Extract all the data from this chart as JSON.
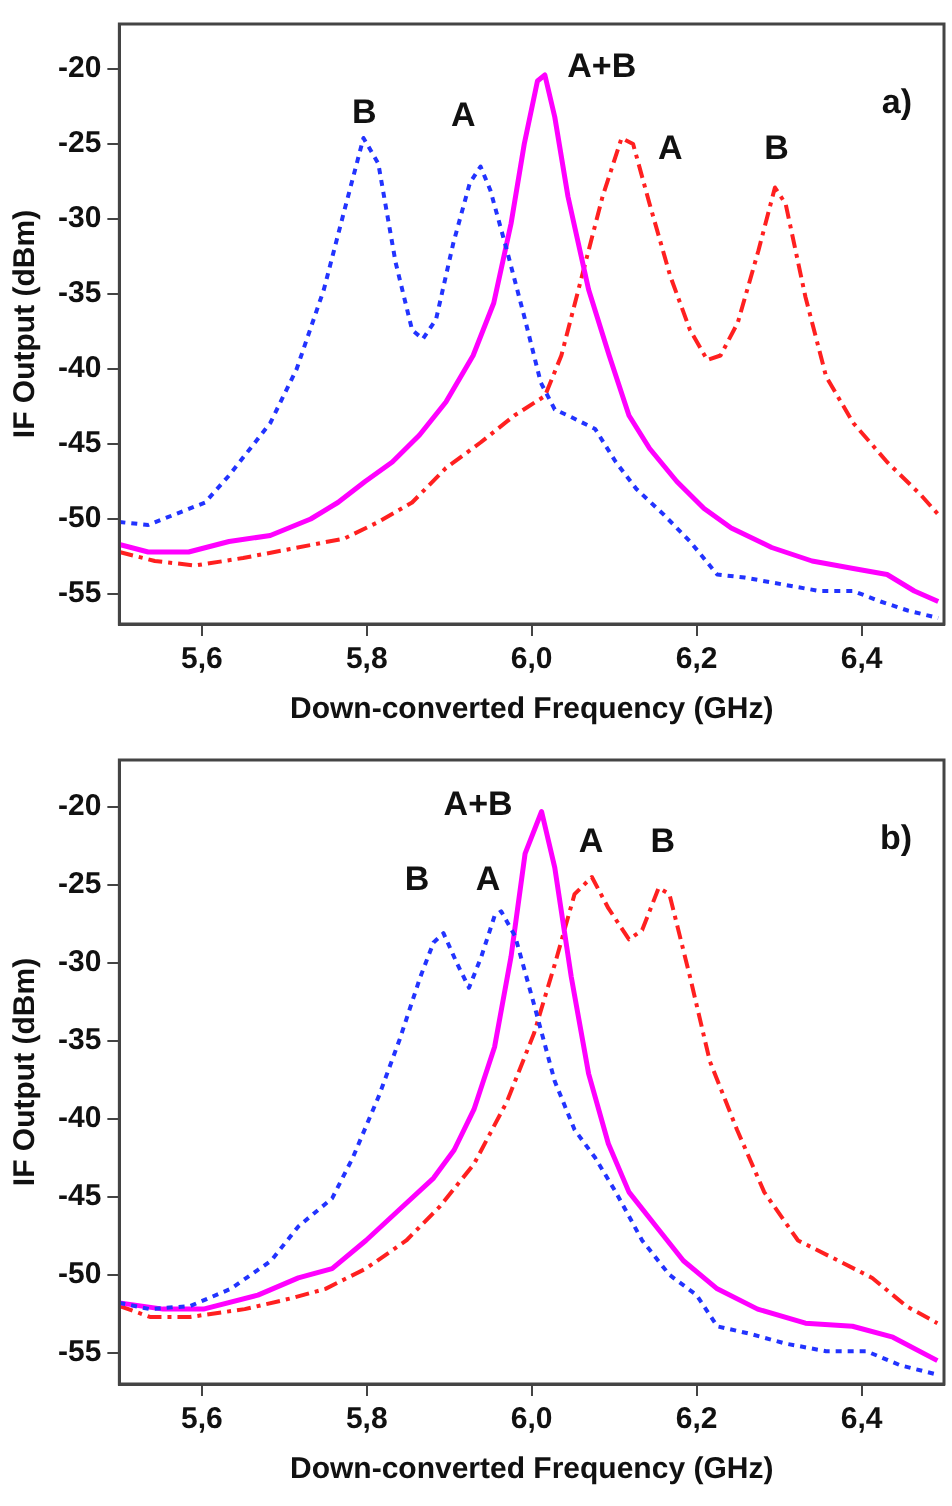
{
  "chart_data": [
    {
      "type": "line",
      "xlabel": "Down-converted Frequency (GHz)",
      "ylabel": "IF Output (dBm)",
      "xlim": [
        5.5,
        6.5
      ],
      "ylim": [
        -57,
        -17
      ],
      "xticks": [
        {
          "value": 5.6,
          "label": "5,6"
        },
        {
          "value": 5.8,
          "label": "5,8"
        },
        {
          "value": 6.0,
          "label": "6,0"
        },
        {
          "value": 6.2,
          "label": "6,2"
        },
        {
          "value": 6.4,
          "label": "6,4"
        }
      ],
      "yticks": [
        -20,
        -25,
        -30,
        -35,
        -40,
        -45,
        -50,
        -55
      ],
      "grid": false,
      "legend": false,
      "marker": "none",
      "annotations": [
        "B",
        "A",
        "A+B",
        "A",
        "B",
        "a)"
      ],
      "series": [
        {
          "color": "#2233ff",
          "line_style": "dotted",
          "x": [
            5.5,
            5.535,
            5.567,
            5.604,
            5.633,
            5.683,
            5.715,
            5.748,
            5.773,
            5.796,
            5.814,
            5.835,
            5.855,
            5.868,
            5.884,
            5.905,
            5.925,
            5.938,
            5.95,
            5.97,
            5.991,
            6.011,
            6.028,
            6.044,
            6.077,
            6.102,
            6.127,
            6.16,
            6.192,
            6.225,
            6.258,
            6.308,
            6.349,
            6.39,
            6.423,
            6.456,
            6.493
          ],
          "values": [
            -50.2,
            -50.4,
            -49.7,
            -48.9,
            -47.1,
            -43.6,
            -40,
            -34.7,
            -29.4,
            -24.6,
            -26.3,
            -32.9,
            -37.4,
            -38,
            -36.7,
            -31.6,
            -27.6,
            -26.5,
            -28.1,
            -32.1,
            -36.5,
            -40.9,
            -42.7,
            -43.1,
            -44,
            -46.2,
            -48,
            -49.7,
            -51.5,
            -53.7,
            -53.9,
            -54.4,
            -54.8,
            -54.8,
            -55.5,
            -56.1,
            -56.6
          ]
        },
        {
          "color": "#ff00ff",
          "line_style": "solid",
          "x": [
            5.5,
            5.535,
            5.584,
            5.633,
            5.683,
            5.732,
            5.765,
            5.798,
            5.831,
            5.864,
            5.896,
            5.929,
            5.954,
            5.975,
            5.991,
            6.007,
            6.016,
            6.028,
            6.044,
            6.069,
            6.094,
            6.118,
            6.143,
            6.176,
            6.209,
            6.242,
            6.291,
            6.34,
            6.39,
            6.431,
            6.464,
            6.493
          ],
          "values": [
            -51.7,
            -52.2,
            -52.2,
            -51.5,
            -51.1,
            -50,
            -48.9,
            -47.5,
            -46.2,
            -44.4,
            -42.2,
            -39.1,
            -35.6,
            -30.3,
            -25,
            -20.8,
            -20.4,
            -23.2,
            -28.5,
            -34.7,
            -39.1,
            -43.1,
            -45.3,
            -47.5,
            -49.3,
            -50.6,
            -51.9,
            -52.8,
            -53.3,
            -53.7,
            -54.8,
            -55.5
          ]
        },
        {
          "color": "#ff2020",
          "line_style": "dashed",
          "x": [
            5.5,
            5.543,
            5.592,
            5.65,
            5.707,
            5.773,
            5.814,
            5.855,
            5.896,
            5.938,
            5.979,
            6.016,
            6.036,
            6.061,
            6.086,
            6.109,
            6.123,
            6.143,
            6.168,
            6.192,
            6.213,
            6.229,
            6.25,
            6.275,
            6.295,
            6.308,
            6.332,
            6.357,
            6.39,
            6.431,
            6.472,
            6.493
          ],
          "values": [
            -52.2,
            -52.8,
            -53.1,
            -52.6,
            -52,
            -51.3,
            -50.2,
            -48.9,
            -46.6,
            -44.9,
            -43.1,
            -41.8,
            -39.1,
            -33.8,
            -28.5,
            -24.6,
            -25,
            -29,
            -33.8,
            -37.4,
            -39.4,
            -39.1,
            -36.9,
            -32.1,
            -27.9,
            -29,
            -35.2,
            -40.5,
            -43.6,
            -46.2,
            -48.4,
            -49.7
          ]
        }
      ]
    },
    {
      "type": "line",
      "xlabel": "Down-converted Frequency (GHz)",
      "ylabel": "IF Output (dBm)",
      "xlim": [
        5.5,
        6.5
      ],
      "ylim": [
        -57,
        -17
      ],
      "xticks": [
        {
          "value": 5.6,
          "label": "5,6"
        },
        {
          "value": 5.8,
          "label": "5,8"
        },
        {
          "value": 6.0,
          "label": "6,0"
        },
        {
          "value": 6.2,
          "label": "6,2"
        },
        {
          "value": 6.4,
          "label": "6,4"
        }
      ],
      "yticks": [
        -20,
        -25,
        -30,
        -35,
        -40,
        -45,
        -50,
        -55
      ],
      "grid": false,
      "legend": false,
      "marker": "none",
      "annotations": [
        "B",
        "A",
        "A+B",
        "A",
        "B",
        "b)"
      ],
      "series": [
        {
          "color": "#2233ff",
          "line_style": "dotted",
          "x": [
            5.5,
            5.537,
            5.586,
            5.635,
            5.684,
            5.717,
            5.758,
            5.783,
            5.815,
            5.84,
            5.865,
            5.881,
            5.893,
            5.91,
            5.924,
            5.939,
            5.955,
            5.963,
            5.98,
            6.003,
            6.028,
            6.052,
            6.077,
            6.102,
            6.134,
            6.167,
            6.2,
            6.225,
            6.266,
            6.307,
            6.357,
            6.406,
            6.447,
            6.492
          ],
          "values": [
            -51.8,
            -52.2,
            -52,
            -50.9,
            -49.1,
            -46.9,
            -45.1,
            -42.5,
            -38.5,
            -34.9,
            -30.9,
            -28.7,
            -28.1,
            -30.1,
            -31.6,
            -29.6,
            -27,
            -26.7,
            -28.3,
            -32.7,
            -37.6,
            -40.7,
            -42.5,
            -44.7,
            -47.8,
            -50,
            -51.3,
            -53.3,
            -53.8,
            -54.4,
            -54.9,
            -54.9,
            -55.8,
            -56.4
          ]
        },
        {
          "color": "#ff00ff",
          "line_style": "solid",
          "x": [
            5.5,
            5.553,
            5.602,
            5.668,
            5.717,
            5.758,
            5.799,
            5.84,
            5.881,
            5.906,
            5.93,
            5.955,
            5.975,
            5.992,
            6.012,
            6.028,
            6.048,
            6.069,
            6.093,
            6.118,
            6.151,
            6.184,
            6.225,
            6.274,
            6.332,
            6.389,
            6.438,
            6.492
          ],
          "values": [
            -51.8,
            -52.2,
            -52.2,
            -51.3,
            -50.2,
            -49.6,
            -47.8,
            -45.8,
            -43.8,
            -42,
            -39.4,
            -35.4,
            -29.6,
            -23,
            -20.3,
            -23.9,
            -30.9,
            -37.1,
            -41.6,
            -44.7,
            -46.9,
            -49.1,
            -50.9,
            -52.2,
            -53.1,
            -53.3,
            -54,
            -55.5
          ]
        },
        {
          "color": "#ff2020",
          "line_style": "dashed",
          "x": [
            5.5,
            5.537,
            5.586,
            5.652,
            5.709,
            5.75,
            5.799,
            5.848,
            5.889,
            5.93,
            5.97,
            6.003,
            6.028,
            6.052,
            6.073,
            6.093,
            6.118,
            6.134,
            6.154,
            6.167,
            6.192,
            6.216,
            6.249,
            6.282,
            6.323,
            6.372,
            6.413,
            6.454,
            6.492
          ],
          "values": [
            -52,
            -52.7,
            -52.7,
            -52.2,
            -51.5,
            -50.9,
            -49.6,
            -47.8,
            -45.6,
            -42.9,
            -38.9,
            -34.5,
            -30.1,
            -25.6,
            -24.5,
            -26.5,
            -28.5,
            -27.9,
            -25.2,
            -25.6,
            -30.9,
            -36.3,
            -40.7,
            -44.7,
            -47.8,
            -49.1,
            -50.2,
            -52,
            -53.1
          ]
        }
      ]
    }
  ]
}
